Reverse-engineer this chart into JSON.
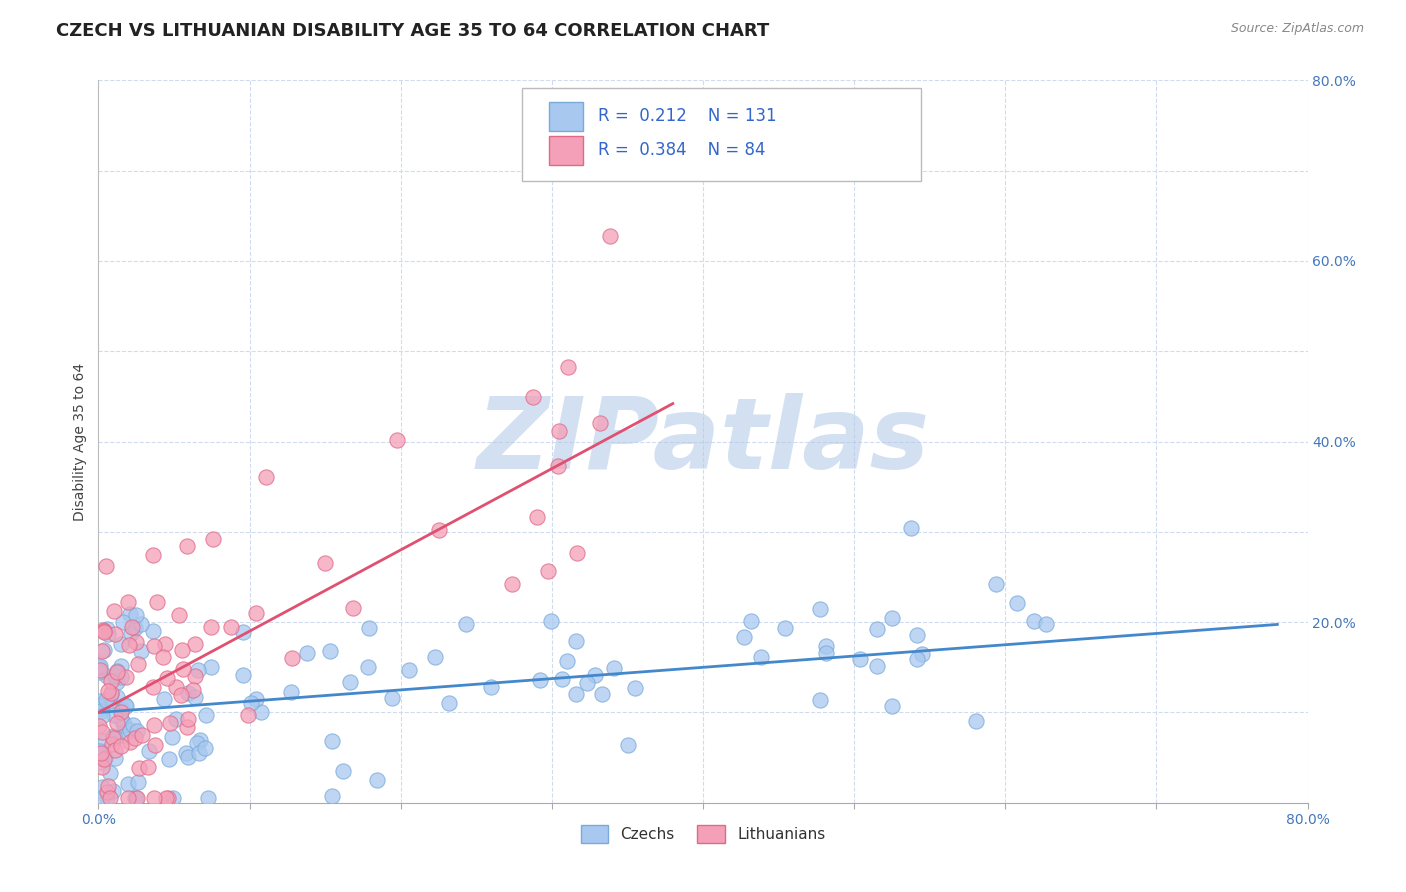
{
  "title": "CZECH VS LITHUANIAN DISABILITY AGE 35 TO 64 CORRELATION CHART",
  "source_text": "Source: ZipAtlas.com",
  "ylabel": "Disability Age 35 to 64",
  "xlim": [
    0.0,
    0.8
  ],
  "ylim": [
    0.0,
    0.8
  ],
  "xticks": [
    0.0,
    0.1,
    0.2,
    0.3,
    0.4,
    0.5,
    0.6,
    0.7,
    0.8
  ],
  "yticks": [
    0.0,
    0.1,
    0.2,
    0.3,
    0.4,
    0.5,
    0.6,
    0.7,
    0.8
  ],
  "xticklabels": [
    "0.0%",
    "",
    "",
    "",
    "",
    "",
    "",
    "",
    "80.0%"
  ],
  "yticklabels_right": [
    "",
    "",
    "20.0%",
    "",
    "40.0%",
    "",
    "60.0%",
    "",
    "80.0%"
  ],
  "czech_R": 0.212,
  "czech_N": 131,
  "lith_R": 0.384,
  "lith_N": 84,
  "czech_color": "#a8c8f0",
  "lith_color": "#f4a0b8",
  "czech_edge_color": "#7aaad8",
  "lith_edge_color": "#e06888",
  "czech_trend_color": "#4488cc",
  "lith_trend_color": "#e05070",
  "watermark": "ZIPatlas",
  "watermark_color_r": 176,
  "watermark_color_g": 200,
  "watermark_color_b": 230,
  "background_color": "#ffffff",
  "grid_color": "#d0dced",
  "title_fontsize": 13,
  "axis_label_fontsize": 10,
  "tick_fontsize": 10,
  "legend_fontsize": 12
}
